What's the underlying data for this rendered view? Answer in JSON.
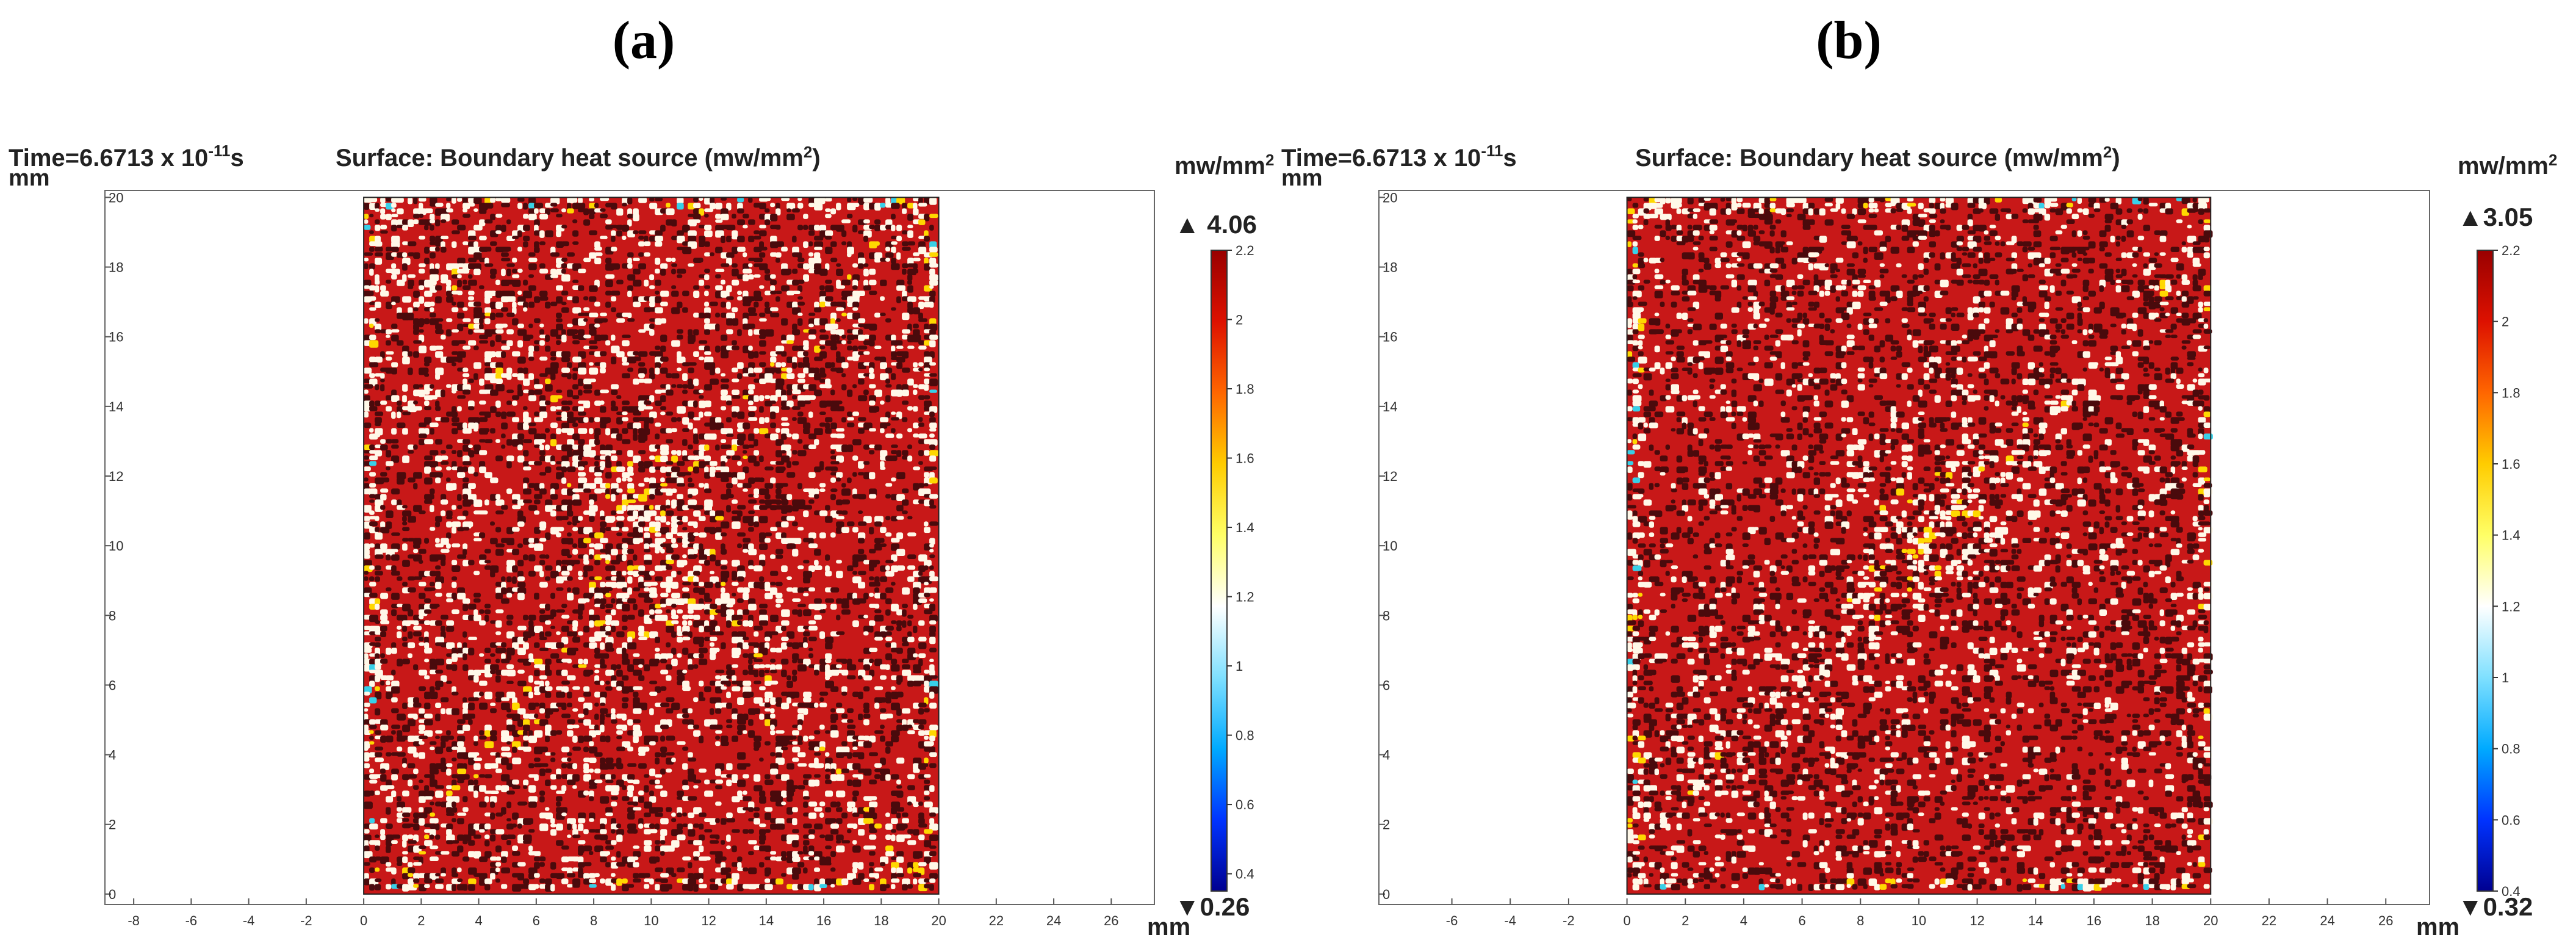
{
  "colors": {
    "dark": "#4a0a0c",
    "red": "#c81818",
    "light": "#fff8e8",
    "yellow": "#ffd800",
    "cyan": "#38d0e8",
    "blue": "#0000c8"
  },
  "colormap": [
    "#000090",
    "#0033ff",
    "#00aaff",
    "#7fe0ff",
    "#ffffff",
    "#ffff66",
    "#ffcc00",
    "#ff6600",
    "#dd1100",
    "#990000"
  ],
  "chart_data": [
    {
      "type": "heatmap",
      "panel": "(a)",
      "time_label": "Time=6.6713 x 10",
      "time_exp": "-11",
      "time_suffix": "s",
      "title_pre": "Surface: Boundary heat source (mw/mm",
      "title_sup": "2",
      "title_post": ")",
      "ylabel": "mm",
      "xlabel": "mm",
      "x_ticks": [
        "-8",
        "-6",
        "-4",
        "-2",
        "0",
        "2",
        "4",
        "6",
        "8",
        "10",
        "12",
        "14",
        "16",
        "18",
        "20",
        "22",
        "24",
        "26"
      ],
      "x_tick_values": [
        -8,
        -6,
        -4,
        -2,
        0,
        2,
        4,
        6,
        8,
        10,
        12,
        14,
        16,
        18,
        20,
        22,
        24,
        26
      ],
      "y_ticks": [
        "0",
        "2",
        "4",
        "6",
        "8",
        "10",
        "12",
        "14",
        "16",
        "18",
        "20"
      ],
      "y_tick_values": [
        0,
        2,
        4,
        6,
        8,
        10,
        12,
        14,
        16,
        18,
        20
      ],
      "xlim": [
        -9,
        27.5
      ],
      "ylim": [
        -0.3,
        20.2
      ],
      "domain_x": [
        0,
        20
      ],
      "domain_y": [
        0,
        20
      ],
      "colorbar": {
        "unit_pre": "mw/mm",
        "unit_sup": "2",
        "max_label": "▲ 4.06",
        "min_label": "▼0.26",
        "range": [
          0.35,
          2.2
        ],
        "ticks": [
          "2.2",
          "2",
          "1.8",
          "1.6",
          "1.4",
          "1.2",
          "1",
          "0.8",
          "0.6",
          "0.4"
        ],
        "tick_values": [
          2.2,
          2.0,
          1.8,
          1.6,
          1.4,
          1.2,
          1.0,
          0.8,
          0.6,
          0.4
        ]
      },
      "pattern": "x-shape",
      "seed": 17
    },
    {
      "type": "heatmap",
      "panel": "(b)",
      "time_label": "Time=6.6713 x 10",
      "time_exp": "-11",
      "time_suffix": "s",
      "title_pre": "Surface: Boundary heat source (mw/mm",
      "title_sup": "2",
      "title_post": ")",
      "ylabel": "mm",
      "xlabel": "mm",
      "x_ticks": [
        "-6",
        "-4",
        "-2",
        "0",
        "2",
        "4",
        "6",
        "8",
        "10",
        "12",
        "14",
        "16",
        "18",
        "20",
        "22",
        "24",
        "26"
      ],
      "x_tick_values": [
        -6,
        -4,
        -2,
        0,
        2,
        4,
        6,
        8,
        10,
        12,
        14,
        16,
        18,
        20,
        22,
        24,
        26
      ],
      "y_ticks": [
        "0",
        "2",
        "4",
        "6",
        "8",
        "10",
        "12",
        "14",
        "16",
        "18",
        "20"
      ],
      "y_tick_values": [
        0,
        2,
        4,
        6,
        8,
        10,
        12,
        14,
        16,
        18,
        20
      ],
      "xlim": [
        -8.5,
        27.5
      ],
      "ylim": [
        -0.3,
        20.2
      ],
      "domain_x": [
        0,
        20
      ],
      "domain_y": [
        0,
        20
      ],
      "colorbar": {
        "unit_pre": "mw/mm",
        "unit_sup": "2",
        "max_label": "▲3.05",
        "min_label": "▼0.32",
        "range": [
          0.4,
          2.2
        ],
        "ticks": [
          "2.2",
          "2",
          "1.8",
          "1.6",
          "1.4",
          "1.2",
          "1",
          "0.8",
          "0.6",
          "0.4"
        ],
        "tick_values": [
          2.2,
          2.0,
          1.8,
          1.6,
          1.4,
          1.2,
          1.0,
          0.8,
          0.6,
          0.4
        ]
      },
      "pattern": "hourglass",
      "seed": 53
    }
  ]
}
